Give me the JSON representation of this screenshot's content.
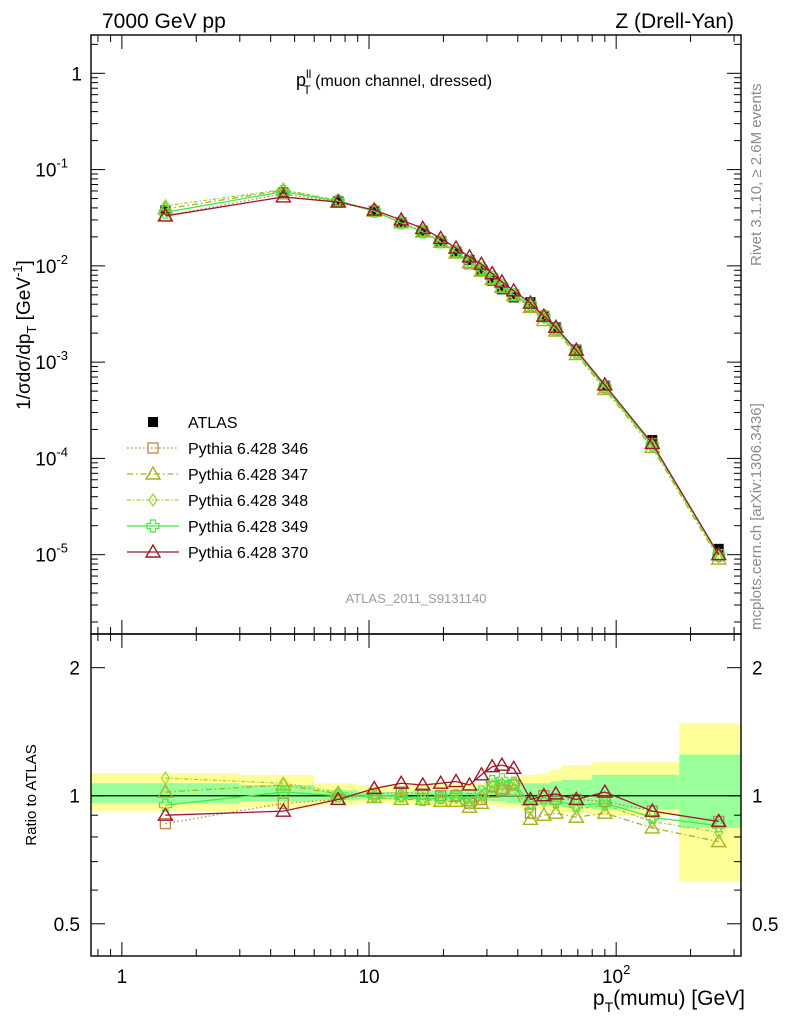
{
  "header": {
    "left": "7000 GeV pp",
    "right": "Z (Drell-Yan)"
  },
  "side": {
    "top": "Rivet 3.1.10, ≥ 2.6M events",
    "bottom": "mcplots.cern.ch [arXiv:1306.3436]"
  },
  "plot_label": {
    "main": "p",
    "sup": "ll",
    "sub": "T",
    "rest": " (muon channel, dressed)"
  },
  "watermark": "ATLAS_2011_S9131140",
  "colors": {
    "atlas": "#000000",
    "p346": "#b8864b",
    "p347": "#a8b11c",
    "p348": "#9ed43a",
    "p349": "#46e846",
    "p370": "#9b1a2a",
    "band_yellow": "#ffff99",
    "band_green": "#99ff99"
  },
  "chart_data": [
    {
      "type": "line",
      "xlabel": "p_T(mumu) [GeV]",
      "ylabel": "1/σdσ/dp_T [GeV^-1]",
      "xscale": "log",
      "yscale": "log",
      "xlim": [
        0.75,
        320
      ],
      "ylim": [
        1.5e-06,
        2.5
      ],
      "x_ticks": [
        {
          "v": 1,
          "label": "1"
        },
        {
          "v": 10,
          "label": "10"
        },
        {
          "v": 100,
          "label": "10",
          "sup": "2"
        }
      ],
      "y_ticks": [
        {
          "v": 1e-05,
          "label": "10",
          "sup": "-5"
        },
        {
          "v": 0.0001,
          "label": "10",
          "sup": "-4"
        },
        {
          "v": 0.001,
          "label": "10",
          "sup": "-3"
        },
        {
          "v": 0.01,
          "label": "10",
          "sup": "-2"
        },
        {
          "v": 0.1,
          "label": "10",
          "sup": "-1"
        },
        {
          "v": 1,
          "label": "1",
          "sup": ""
        }
      ],
      "x": [
        1.5,
        4.5,
        7.5,
        10.5,
        13.5,
        16.5,
        19.5,
        22.5,
        25.5,
        28.5,
        31.5,
        34.5,
        38.5,
        45,
        51,
        57,
        69,
        90,
        140,
        260
      ],
      "series": [
        {
          "name": "ATLAS",
          "key": "atlas",
          "marker": "square",
          "dash": "",
          "values": [
            0.038,
            0.058,
            0.047,
            0.037,
            0.028,
            0.023,
            0.018,
            0.014,
            0.0115,
            0.0092,
            0.007,
            0.0057,
            0.0047,
            0.0042,
            0.003,
            0.0023,
            0.00135,
            0.00057,
            0.000155,
            1.15e-05
          ]
        },
        {
          "name": "Pythia 6.428 346",
          "key": "p346",
          "marker": "square-open",
          "dash": "1.5,2.5",
          "values": [
            0.033,
            0.056,
            0.046,
            0.037,
            0.028,
            0.023,
            0.018,
            0.014,
            0.0105,
            0.009,
            0.0074,
            0.0059,
            0.005,
            0.0038,
            0.003,
            0.0022,
            0.00132,
            0.00055,
            0.000143,
            1e-05
          ]
        },
        {
          "name": "Pythia 6.428 347",
          "key": "p347",
          "marker": "triangle-open",
          "dash": "6,3,1.5,3",
          "values": [
            0.039,
            0.061,
            0.047,
            0.037,
            0.028,
            0.0225,
            0.0175,
            0.0136,
            0.0108,
            0.0088,
            0.0072,
            0.006,
            0.0049,
            0.0037,
            0.0027,
            0.0021,
            0.0012,
            0.00052,
            0.00013,
            9e-06
          ]
        },
        {
          "name": "Pythia 6.428 348",
          "key": "p348",
          "marker": "diamond-open",
          "dash": "4,2,1.5,2",
          "values": [
            0.042,
            0.062,
            0.048,
            0.037,
            0.028,
            0.0225,
            0.0178,
            0.0138,
            0.011,
            0.0092,
            0.0074,
            0.0061,
            0.005,
            0.0039,
            0.0029,
            0.0022,
            0.00126,
            0.00054,
            0.000135,
            9.5e-06
          ]
        },
        {
          "name": "Pythia 6.428 349",
          "key": "p349",
          "marker": "cross-open",
          "dash": "",
          "values": [
            0.036,
            0.059,
            0.047,
            0.037,
            0.028,
            0.0225,
            0.0178,
            0.014,
            0.0112,
            0.0094,
            0.0076,
            0.0062,
            0.005,
            0.004,
            0.003,
            0.0022,
            0.00128,
            0.00055,
            0.000138,
            9.8e-06
          ]
        },
        {
          "name": "Pythia 6.428 370",
          "key": "p370",
          "marker": "triangle-open",
          "dash": "",
          "values": [
            0.033,
            0.052,
            0.046,
            0.038,
            0.03,
            0.0245,
            0.0193,
            0.0153,
            0.0124,
            0.0104,
            0.0083,
            0.0068,
            0.0055,
            0.0041,
            0.003,
            0.0023,
            0.00133,
            0.00058,
            0.000143,
            1e-05
          ]
        }
      ]
    },
    {
      "type": "line",
      "xlabel": "p_T(mumu) [GeV]",
      "ylabel": "Ratio to ATLAS",
      "xscale": "log",
      "yscale": "log",
      "xlim": [
        0.75,
        320
      ],
      "ylim": [
        0.42,
        2.4
      ],
      "y_ticks": [
        {
          "v": 0.5,
          "label": "0.5"
        },
        {
          "v": 1,
          "label": "1"
        },
        {
          "v": 2,
          "label": "2"
        }
      ],
      "x": [
        1.5,
        4.5,
        7.5,
        10.5,
        13.5,
        16.5,
        19.5,
        22.5,
        25.5,
        28.5,
        31.5,
        34.5,
        38.5,
        45,
        51,
        57,
        69,
        90,
        140,
        260
      ],
      "bands": {
        "edges": [
          0.75,
          3,
          6,
          9,
          12,
          15,
          18,
          21,
          24,
          27,
          30,
          33,
          36,
          41,
          48,
          54,
          60,
          80,
          180,
          320
        ],
        "yellow": [
          [
            0.92,
            1.13
          ],
          [
            0.94,
            1.12
          ],
          [
            0.95,
            1.07
          ],
          [
            0.96,
            1.06
          ],
          [
            0.96,
            1.06
          ],
          [
            0.95,
            1.07
          ],
          [
            0.95,
            1.07
          ],
          [
            0.95,
            1.07
          ],
          [
            0.95,
            1.07
          ],
          [
            0.95,
            1.07
          ],
          [
            0.95,
            1.08
          ],
          [
            0.94,
            1.09
          ],
          [
            0.94,
            1.09
          ],
          [
            0.93,
            1.12
          ],
          [
            0.93,
            1.13
          ],
          [
            0.92,
            1.15
          ],
          [
            0.91,
            1.18
          ],
          [
            0.9,
            1.2
          ],
          [
            0.63,
            1.48
          ]
        ],
        "green": [
          [
            0.96,
            1.07
          ],
          [
            0.97,
            1.06
          ],
          [
            0.975,
            1.03
          ],
          [
            0.98,
            1.02
          ],
          [
            0.98,
            1.02
          ],
          [
            0.975,
            1.03
          ],
          [
            0.975,
            1.03
          ],
          [
            0.975,
            1.03
          ],
          [
            0.97,
            1.03
          ],
          [
            0.97,
            1.04
          ],
          [
            0.97,
            1.04
          ],
          [
            0.97,
            1.05
          ],
          [
            0.96,
            1.05
          ],
          [
            0.95,
            1.07
          ],
          [
            0.95,
            1.07
          ],
          [
            0.95,
            1.08
          ],
          [
            0.94,
            1.09
          ],
          [
            0.93,
            1.12
          ],
          [
            0.84,
            1.25
          ]
        ]
      },
      "series": [
        {
          "name": "Pythia 6.428 346",
          "key": "p346",
          "marker": "square-open",
          "dash": "1.5,2.5",
          "values": [
            0.86,
            0.96,
            0.98,
            1.01,
            1.02,
            1.01,
            1.0,
            1.0,
            0.96,
            0.98,
            1.05,
            1.03,
            1.06,
            0.91,
            1.0,
            0.98,
            0.98,
            0.97,
            0.92,
            0.87
          ]
        },
        {
          "name": "Pythia 6.428 347",
          "key": "p347",
          "marker": "triangle-open",
          "dash": "6,3,1.5,3",
          "values": [
            1.02,
            1.06,
            1.01,
            0.99,
            0.98,
            0.98,
            0.97,
            0.97,
            0.94,
            0.96,
            1.02,
            1.04,
            1.03,
            0.88,
            0.9,
            0.91,
            0.89,
            0.91,
            0.84,
            0.78
          ]
        },
        {
          "name": "Pythia 6.428 348",
          "key": "p348",
          "marker": "diamond-open",
          "dash": "4,2,1.5,2",
          "values": [
            1.1,
            1.07,
            1.02,
            1.0,
            1.0,
            0.98,
            0.99,
            0.99,
            0.96,
            1.0,
            1.06,
            1.07,
            1.07,
            0.93,
            0.97,
            0.96,
            0.93,
            0.95,
            0.87,
            0.82
          ]
        },
        {
          "name": "Pythia 6.428 349",
          "key": "p349",
          "marker": "cross-open",
          "dash": "",
          "values": [
            0.95,
            1.02,
            1.0,
            1.0,
            1.0,
            0.98,
            0.99,
            1.0,
            0.98,
            1.02,
            1.08,
            1.09,
            1.07,
            0.96,
            0.99,
            0.97,
            0.95,
            0.96,
            0.89,
            0.85
          ]
        },
        {
          "name": "Pythia 6.428 370",
          "key": "p370",
          "marker": "triangle-open",
          "dash": "",
          "values": [
            0.9,
            0.92,
            0.98,
            1.04,
            1.07,
            1.06,
            1.07,
            1.08,
            1.06,
            1.12,
            1.17,
            1.18,
            1.16,
            0.98,
            1.0,
            1.01,
            0.98,
            1.02,
            0.92,
            0.87
          ]
        }
      ]
    }
  ]
}
